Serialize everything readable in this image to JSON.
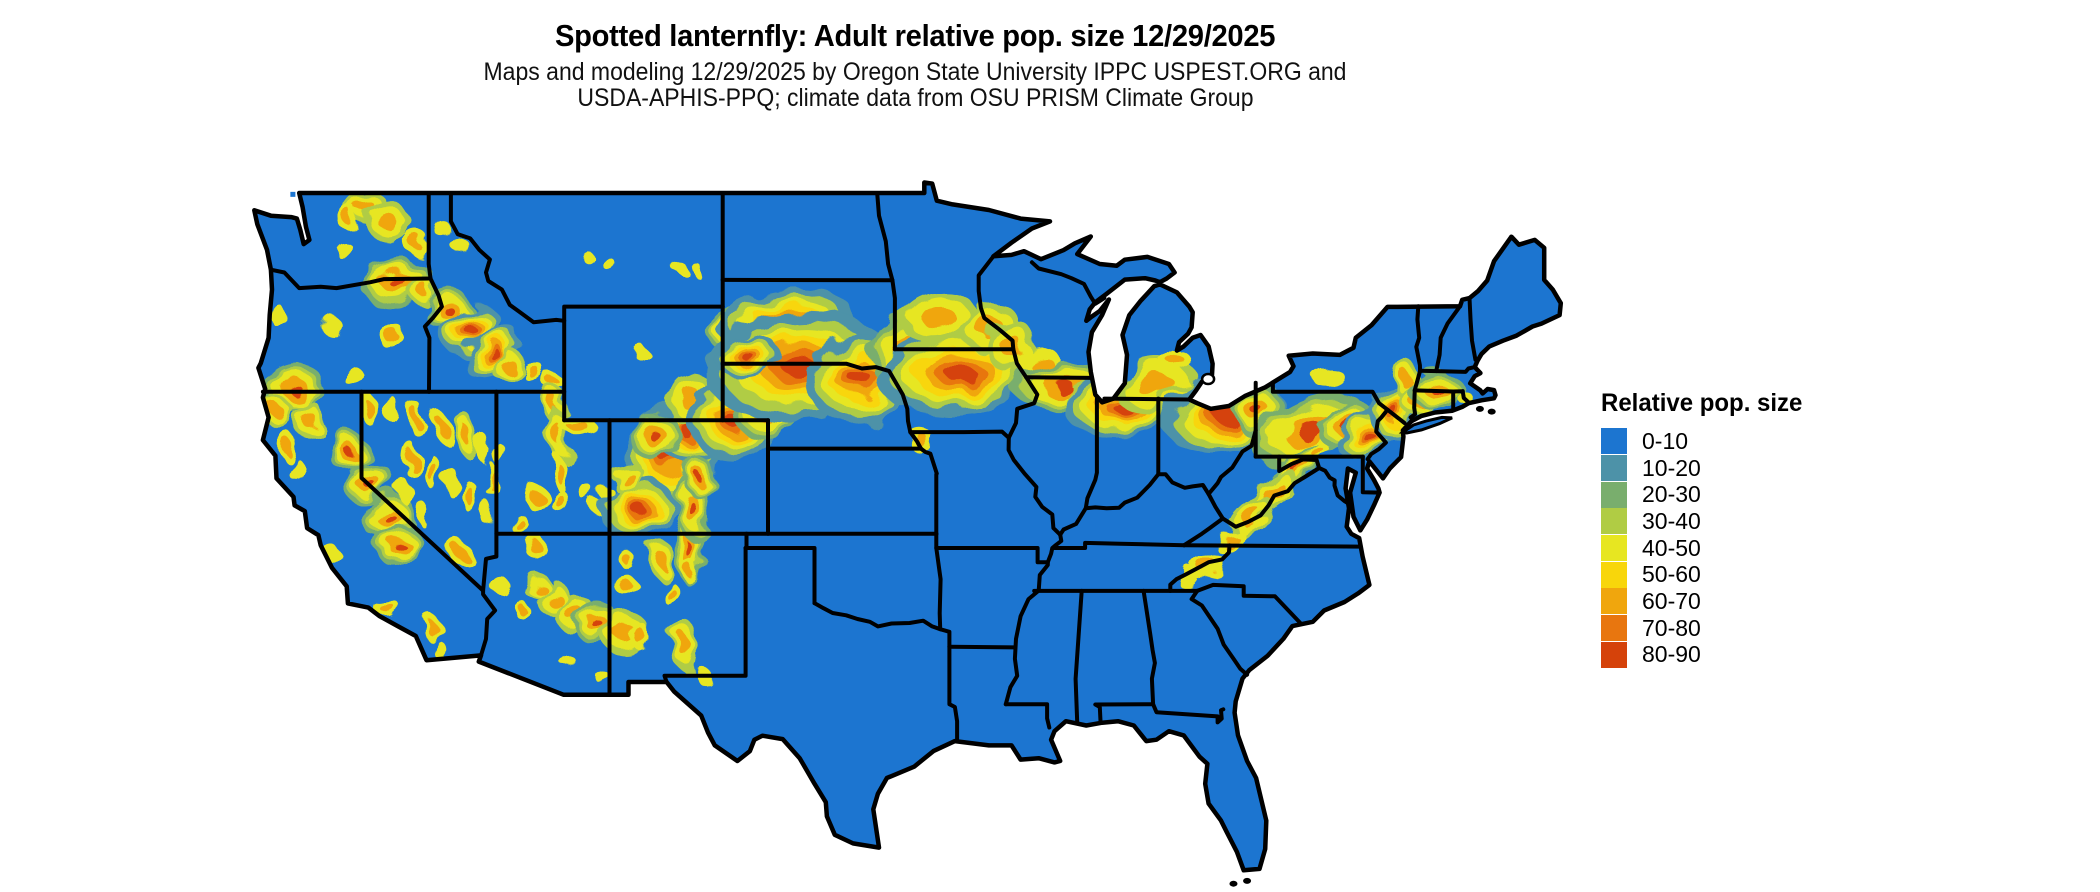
{
  "title": "Spotted lanternfly: Adult relative pop. size 12/29/2025",
  "subtitle_line1": "Maps and modeling 12/29/2025 by Oregon State University IPPC USPEST.ORG and",
  "subtitle_line2": "USDA-APHIS-PPQ; climate data from OSU PRISM Climate Group",
  "legend": {
    "title": "Relative pop. size",
    "items": [
      {
        "label": "0-10",
        "color": "#1C75D0"
      },
      {
        "label": "10-20",
        "color": "#4D92A8"
      },
      {
        "label": "20-30",
        "color": "#79AE6D"
      },
      {
        "label": "30-40",
        "color": "#B0CC44"
      },
      {
        "label": "40-50",
        "color": "#E7E621"
      },
      {
        "label": "50-60",
        "color": "#F8D60B"
      },
      {
        "label": "60-70",
        "color": "#F0A60D"
      },
      {
        "label": "70-80",
        "color": "#E8760F"
      },
      {
        "label": "80-90",
        "color": "#D5420A"
      }
    ]
  },
  "map_data": {
    "type": "choropleth-raster",
    "region": "contiguous United States with state borders",
    "projection": "equirectangular",
    "lon_range": [
      -124.7,
      -66.9
    ],
    "lat_range": [
      25.0,
      49.0
    ],
    "base_color": "#1C75D0",
    "border_color": "#000000",
    "background_color": "#ffffff",
    "hotspots": [
      [
        -119.9,
        48.55,
        0.75,
        0.45,
        -10,
        2
      ],
      [
        -118.85,
        48.0,
        0.8,
        0.55,
        20,
        2
      ],
      [
        -120.6,
        48.15,
        0.5,
        0.45,
        0,
        1.5
      ],
      [
        -117.55,
        47.25,
        0.55,
        0.45,
        -30,
        1.5
      ],
      [
        -120.9,
        47.1,
        0.4,
        0.3,
        0,
        1
      ],
      [
        -118.4,
        45.85,
        1.1,
        0.5,
        -15,
        2.5
      ],
      [
        -117.3,
        45.6,
        0.5,
        0.4,
        -40,
        2
      ],
      [
        -123.0,
        42.15,
        0.9,
        0.6,
        -15,
        2.5
      ],
      [
        -123.7,
        41.3,
        0.5,
        0.4,
        -20,
        2
      ],
      [
        -122.3,
        41.0,
        0.55,
        0.5,
        0,
        2
      ],
      [
        -121.3,
        44.3,
        0.5,
        0.3,
        0,
        1
      ],
      [
        -120.3,
        42.5,
        0.5,
        0.3,
        0,
        1
      ],
      [
        -118.7,
        44.0,
        0.6,
        0.4,
        -20,
        1.5
      ],
      [
        -123.7,
        44.7,
        0.3,
        0.4,
        0,
        1
      ],
      [
        -116.2,
        44.9,
        0.7,
        0.45,
        -30,
        2.5
      ],
      [
        -115.2,
        44.2,
        0.85,
        0.5,
        -35,
        3
      ],
      [
        -114.2,
        43.4,
        0.9,
        0.5,
        -35,
        3
      ],
      [
        -113.5,
        42.9,
        0.6,
        0.35,
        -30,
        2
      ],
      [
        -112.4,
        42.7,
        0.5,
        0.3,
        -20,
        1.5
      ],
      [
        -111.6,
        42.4,
        0.4,
        0.3,
        -30,
        1.5
      ],
      [
        -116.5,
        47.8,
        0.35,
        0.3,
        0,
        1
      ],
      [
        -115.7,
        47.2,
        0.35,
        0.3,
        0,
        1
      ],
      [
        -110.2,
        46.9,
        0.25,
        0.2,
        0,
        1
      ],
      [
        -109.2,
        46.6,
        0.3,
        0.2,
        0,
        1
      ],
      [
        -106.0,
        46.4,
        0.3,
        0.2,
        0,
        1
      ],
      [
        -105.2,
        46.3,
        0.25,
        0.2,
        0,
        1
      ],
      [
        -107.7,
        43.4,
        0.3,
        0.25,
        0,
        1
      ],
      [
        -120.6,
        39.9,
        0.6,
        0.45,
        -35,
        2.5
      ],
      [
        -119.7,
        38.8,
        0.75,
        0.5,
        -40,
        2.5
      ],
      [
        -118.8,
        37.6,
        0.8,
        0.5,
        -45,
        2.5
      ],
      [
        -118.35,
        36.6,
        0.7,
        0.45,
        -60,
        2.5
      ],
      [
        -123.3,
        40.1,
        0.4,
        0.5,
        0,
        1.5
      ],
      [
        -122.8,
        39.2,
        0.35,
        0.4,
        0,
        1
      ],
      [
        -121.3,
        36.3,
        0.35,
        0.45,
        -40,
        1
      ],
      [
        -118.8,
        34.35,
        0.6,
        0.3,
        0,
        1.5
      ],
      [
        -116.8,
        33.6,
        0.4,
        0.45,
        0,
        1.5
      ],
      [
        -116.4,
        32.8,
        0.3,
        0.3,
        0,
        1
      ],
      [
        -119.7,
        41.4,
        0.4,
        0.5,
        0,
        1.5
      ],
      [
        -118.7,
        41.4,
        0.35,
        0.45,
        0,
        1
      ],
      [
        -117.5,
        41.0,
        0.4,
        0.55,
        0,
        1.5
      ],
      [
        -116.4,
        40.7,
        0.35,
        0.6,
        -15,
        1.5
      ],
      [
        -115.4,
        40.5,
        0.4,
        0.7,
        -15,
        2
      ],
      [
        -114.6,
        40.0,
        0.3,
        0.5,
        0,
        1
      ],
      [
        -117.8,
        39.6,
        0.35,
        0.6,
        0,
        1.5
      ],
      [
        -116.9,
        39.2,
        0.35,
        0.6,
        0,
        1.5
      ],
      [
        -116.0,
        38.8,
        0.3,
        0.5,
        0,
        1
      ],
      [
        -115.2,
        38.3,
        0.35,
        0.55,
        0,
        1.5
      ],
      [
        -114.25,
        38.9,
        0.3,
        0.6,
        0,
        1.5
      ],
      [
        -118.1,
        38.5,
        0.3,
        0.4,
        0,
        1
      ],
      [
        -117.3,
        37.7,
        0.3,
        0.4,
        0,
        1
      ],
      [
        -115.6,
        36.3,
        0.45,
        0.4,
        -20,
        1.5
      ],
      [
        -114.3,
        37.6,
        0.3,
        0.4,
        0,
        1
      ],
      [
        -111.5,
        41.6,
        0.4,
        0.5,
        0,
        2
      ],
      [
        -111.25,
        40.45,
        0.4,
        0.75,
        -10,
        2
      ],
      [
        -110.4,
        40.75,
        0.8,
        0.35,
        0,
        1.5
      ],
      [
        -111.35,
        39.2,
        0.35,
        0.7,
        -10,
        1.5
      ],
      [
        -112.3,
        38.3,
        0.45,
        0.5,
        0,
        1.5
      ],
      [
        -111.3,
        38.2,
        0.4,
        0.4,
        0,
        1.5
      ],
      [
        -110.0,
        38.4,
        0.3,
        0.3,
        0,
        1
      ],
      [
        -109.25,
        38.5,
        0.25,
        0.3,
        0,
        1
      ],
      [
        -109.55,
        37.9,
        0.25,
        0.25,
        0,
        1
      ],
      [
        -113.1,
        37.4,
        0.4,
        0.35,
        0,
        1.5
      ],
      [
        -113.9,
        39.8,
        0.25,
        0.4,
        0,
        1
      ],
      [
        -112.25,
        36.5,
        0.5,
        0.4,
        0,
        1.5
      ],
      [
        -113.9,
        35.2,
        0.4,
        0.3,
        -30,
        1
      ],
      [
        -112.3,
        35.2,
        0.5,
        0.35,
        0,
        2
      ],
      [
        -111.5,
        34.7,
        0.6,
        0.45,
        -35,
        2
      ],
      [
        -110.6,
        34.2,
        0.7,
        0.45,
        -25,
        2
      ],
      [
        -109.6,
        33.85,
        0.7,
        0.5,
        -15,
        2.5
      ],
      [
        -110.75,
        32.4,
        0.3,
        0.25,
        0,
        1
      ],
      [
        -109.35,
        31.95,
        0.3,
        0.25,
        0,
        1
      ],
      [
        -112.9,
        34.3,
        0.35,
        0.3,
        -20,
        1.5
      ],
      [
        -105.5,
        36.4,
        0.45,
        0.9,
        -5,
        2.5
      ],
      [
        -106.75,
        36.1,
        0.45,
        0.5,
        0,
        2
      ],
      [
        -108.3,
        36.1,
        0.35,
        0.3,
        0,
        1.5
      ],
      [
        -108.35,
        35.2,
        0.5,
        0.35,
        0,
        1.5
      ],
      [
        -108.35,
        33.5,
        0.8,
        0.6,
        -10,
        2
      ],
      [
        -107.7,
        33.4,
        0.4,
        0.5,
        0,
        1.5
      ],
      [
        -105.75,
        33.1,
        0.45,
        0.8,
        -10,
        2
      ],
      [
        -106.35,
        34.9,
        0.3,
        0.45,
        0,
        1.5
      ],
      [
        -105.4,
        35.6,
        0.35,
        0.4,
        0,
        1.5
      ],
      [
        -104.9,
        32.0,
        0.35,
        0.3,
        -30,
        1
      ],
      [
        -106.4,
        39.7,
        1.3,
        1.15,
        0,
        3
      ],
      [
        -105.6,
        40.55,
        0.8,
        0.7,
        0,
        3
      ],
      [
        -107.0,
        40.4,
        0.8,
        0.6,
        0,
        2.5
      ],
      [
        -107.8,
        37.9,
        1.05,
        0.65,
        -10,
        3
      ],
      [
        -105.4,
        37.9,
        0.5,
        0.9,
        -10,
        2.5
      ],
      [
        -108.3,
        39.0,
        0.6,
        0.4,
        -20,
        2
      ],
      [
        -105.1,
        39.0,
        0.45,
        0.5,
        0,
        2.5
      ],
      [
        -105.4,
        41.7,
        0.8,
        0.75,
        0,
        2
      ],
      [
        -103.6,
        41.0,
        1.2,
        0.9,
        -10,
        3
      ],
      [
        -102.2,
        41.4,
        1.0,
        0.7,
        -15,
        2.5
      ],
      [
        -103.75,
        44.2,
        0.7,
        0.55,
        0,
        2.5
      ],
      [
        -101.2,
        44.4,
        1.9,
        0.8,
        -5,
        3
      ],
      [
        -100.7,
        42.9,
        2.6,
        1.2,
        -5,
        3
      ],
      [
        -102.9,
        43.2,
        0.9,
        0.45,
        -10,
        3
      ],
      [
        -98.0,
        42.5,
        1.5,
        1.0,
        -10,
        3
      ],
      [
        -95.8,
        43.4,
        1.3,
        0.85,
        -15,
        2.5
      ],
      [
        -93.6,
        42.7,
        2.3,
        0.95,
        -5,
        3
      ],
      [
        -94.5,
        44.6,
        1.3,
        0.7,
        -10,
        2
      ],
      [
        -92.3,
        44.3,
        1.0,
        0.6,
        -25,
        2
      ],
      [
        -91.3,
        43.6,
        0.9,
        0.7,
        -20,
        2
      ],
      [
        -90.0,
        43.0,
        0.9,
        0.5,
        -10,
        1.5
      ],
      [
        -95.3,
        40.3,
        0.6,
        0.4,
        0,
        1.5
      ],
      [
        -89.0,
        42.2,
        1.5,
        0.6,
        -5,
        2.5
      ],
      [
        -87.9,
        41.7,
        0.8,
        0.5,
        -15,
        2
      ],
      [
        -86.4,
        41.5,
        1.6,
        0.7,
        -5,
        3
      ],
      [
        -84.9,
        42.2,
        1.5,
        0.65,
        -10,
        2
      ],
      [
        -83.9,
        43.0,
        0.6,
        0.4,
        -10,
        1.5
      ],
      [
        -83.6,
        41.6,
        0.9,
        0.5,
        -10,
        2
      ],
      [
        -81.9,
        41.2,
        1.7,
        0.85,
        -10,
        3
      ],
      [
        -80.4,
        41.3,
        0.8,
        0.6,
        -20,
        2.5
      ],
      [
        -78.2,
        40.7,
        1.8,
        0.7,
        -25,
        2.5
      ],
      [
        -76.6,
        40.9,
        0.9,
        0.5,
        -30,
        2.5
      ],
      [
        -75.6,
        40.5,
        0.9,
        0.55,
        -30,
        3
      ],
      [
        -74.35,
        41.25,
        0.8,
        0.6,
        -40,
        3
      ],
      [
        -73.85,
        42.4,
        0.45,
        0.6,
        -10,
        2
      ],
      [
        -73.3,
        41.55,
        0.5,
        0.45,
        -20,
        2
      ],
      [
        -72.55,
        42.05,
        0.8,
        0.45,
        -10,
        2.5
      ],
      [
        -71.35,
        41.85,
        0.3,
        0.25,
        0,
        1
      ],
      [
        -77.3,
        42.5,
        0.7,
        0.3,
        -5,
        1
      ],
      [
        -78.7,
        39.35,
        1.0,
        0.4,
        -40,
        2.5
      ],
      [
        -79.7,
        38.45,
        1.0,
        0.4,
        -40,
        2
      ],
      [
        -80.65,
        37.55,
        0.9,
        0.38,
        -40,
        2
      ],
      [
        -81.6,
        36.7,
        0.7,
        0.33,
        -40,
        1.5
      ],
      [
        -82.5,
        35.75,
        0.75,
        0.35,
        -35,
        1.5
      ],
      [
        -83.4,
        35.35,
        0.5,
        0.3,
        -30,
        1
      ],
      [
        -77.8,
        39.9,
        0.5,
        0.3,
        -30,
        1.5
      ]
    ]
  }
}
